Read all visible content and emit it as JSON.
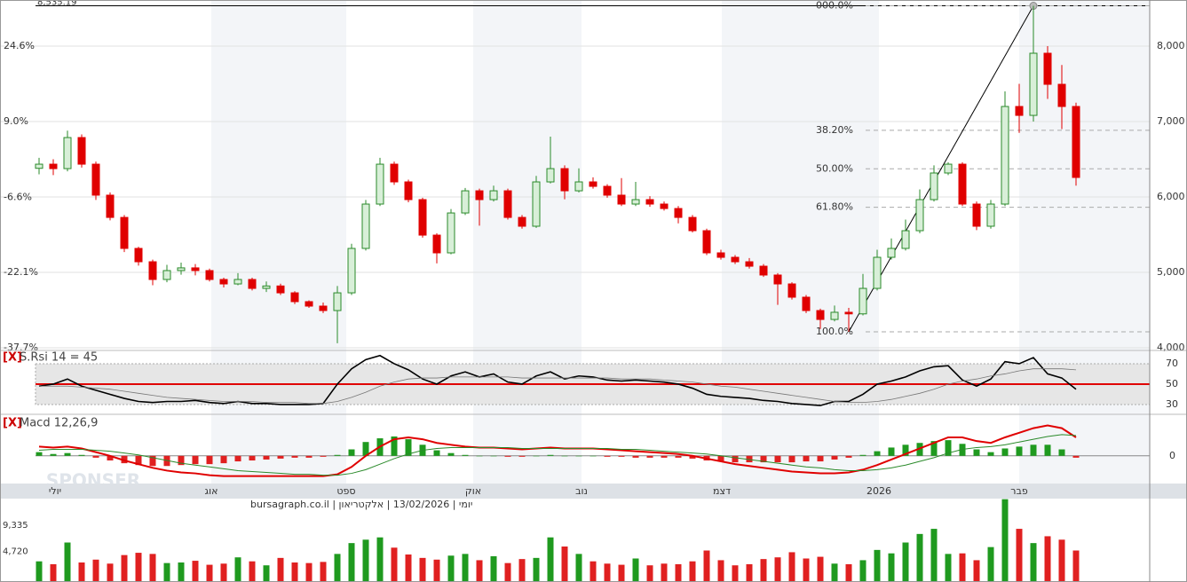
{
  "chart_data": [
    {
      "type": "candlestick",
      "high_label": {
        "value": 8535.19,
        "label": "8,535.19"
      },
      "watermark": "SPONSER",
      "candles": [
        [
          6380,
          6520,
          6300,
          6435
        ],
        [
          6435,
          6500,
          6290,
          6376
        ],
        [
          6376,
          6880,
          6340,
          6788
        ],
        [
          6788,
          6830,
          6390,
          6435
        ],
        [
          6435,
          6470,
          5960,
          6024
        ],
        [
          6024,
          6060,
          5690,
          5729
        ],
        [
          5729,
          5760,
          5270,
          5318
        ],
        [
          5318,
          5340,
          5090,
          5141
        ],
        [
          5141,
          5170,
          4830,
          4906
        ],
        [
          4906,
          5100,
          4870,
          5024
        ],
        [
          5024,
          5130,
          4970,
          5060
        ],
        [
          5060,
          5110,
          4960,
          5024
        ],
        [
          5024,
          5050,
          4880,
          4906
        ],
        [
          4906,
          4930,
          4800,
          4847
        ],
        [
          4847,
          4990,
          4830,
          4906
        ],
        [
          4906,
          4930,
          4760,
          4788
        ],
        [
          4788,
          4880,
          4740,
          4820
        ],
        [
          4820,
          4850,
          4700,
          4729
        ],
        [
          4729,
          4750,
          4580,
          4612
        ],
        [
          4612,
          4630,
          4530,
          4553
        ],
        [
          4553,
          4600,
          4460,
          4494
        ],
        [
          4494,
          4820,
          4060,
          4729
        ],
        [
          4729,
          5380,
          4700,
          5318
        ],
        [
          5318,
          5960,
          5290,
          5906
        ],
        [
          5906,
          6520,
          5880,
          6435
        ],
        [
          6435,
          6470,
          6160,
          6200
        ],
        [
          6200,
          6230,
          5930,
          5965
        ],
        [
          5965,
          5990,
          5460,
          5494
        ],
        [
          5494,
          5520,
          5120,
          5259
        ],
        [
          5259,
          5840,
          5240,
          5788
        ],
        [
          5788,
          6120,
          5760,
          6082
        ],
        [
          6082,
          6110,
          5620,
          5965
        ],
        [
          5965,
          6150,
          5940,
          6082
        ],
        [
          6082,
          6110,
          5700,
          5729
        ],
        [
          5729,
          5760,
          5580,
          5612
        ],
        [
          5612,
          6280,
          5590,
          6200
        ],
        [
          6200,
          6800,
          6180,
          6376
        ],
        [
          6376,
          6420,
          5970,
          6082
        ],
        [
          6082,
          6380,
          6060,
          6200
        ],
        [
          6200,
          6260,
          6110,
          6141
        ],
        [
          6141,
          6170,
          5990,
          6024
        ],
        [
          6024,
          6250,
          5880,
          5906
        ],
        [
          5906,
          6200,
          5880,
          5965
        ],
        [
          5965,
          6010,
          5870,
          5906
        ],
        [
          5906,
          5940,
          5820,
          5847
        ],
        [
          5847,
          5880,
          5650,
          5729
        ],
        [
          5729,
          5760,
          5530,
          5553
        ],
        [
          5553,
          5580,
          5230,
          5259
        ],
        [
          5259,
          5300,
          5170,
          5200
        ],
        [
          5200,
          5230,
          5110,
          5141
        ],
        [
          5141,
          5190,
          5050,
          5082
        ],
        [
          5082,
          5110,
          4940,
          4965
        ],
        [
          4965,
          4990,
          4570,
          4847
        ],
        [
          4847,
          4870,
          4640,
          4671
        ],
        [
          4671,
          4700,
          4460,
          4494
        ],
        [
          4494,
          4520,
          4250,
          4376
        ],
        [
          4376,
          4560,
          4350,
          4471
        ],
        [
          4471,
          4530,
          4212,
          4450
        ],
        [
          4450,
          4980,
          4430,
          4788
        ],
        [
          4788,
          5300,
          4760,
          5200
        ],
        [
          5200,
          5450,
          5170,
          5318
        ],
        [
          5318,
          5700,
          5290,
          5553
        ],
        [
          5553,
          6100,
          5520,
          5965
        ],
        [
          5965,
          6420,
          5940,
          6318
        ],
        [
          6318,
          6460,
          6290,
          6435
        ],
        [
          6435,
          6460,
          5880,
          5906
        ],
        [
          5906,
          5940,
          5560,
          5612
        ],
        [
          5612,
          5960,
          5580,
          5906
        ],
        [
          5906,
          7400,
          5880,
          7200
        ],
        [
          7200,
          7500,
          6850,
          7082
        ],
        [
          7082,
          8535.19,
          7000,
          7906
        ],
        [
          7906,
          8000,
          7300,
          7494
        ],
        [
          7494,
          7750,
          6900,
          7200
        ],
        [
          7200,
          7250,
          6150,
          6259
        ]
      ],
      "up_color": "#2a8a2a",
      "down_color": "#e00000",
      "ylim": [
        3965,
        8612
      ],
      "yticks": [
        {
          "value": 4000,
          "label": "4,000"
        },
        {
          "value": 5000,
          "label": "5,000"
        },
        {
          "value": 6000,
          "label": "6,000"
        },
        {
          "value": 7000,
          "label": "7,000"
        },
        {
          "value": 8000,
          "label": "8,000"
        }
      ],
      "y2lim": [
        -38.25,
        34.13
      ],
      "y2ticks": [
        {
          "value": -37.7,
          "label": "-37.7%"
        },
        {
          "value": -22.1,
          "label": "-22.1%"
        },
        {
          "value": -6.6,
          "label": "-6.6%"
        },
        {
          "value": 9.0,
          "label": "9.0%"
        },
        {
          "value": 24.6,
          "label": "24.6%"
        }
      ],
      "fib": {
        "from": 4212,
        "to": 8535.19,
        "levels": [
          {
            "value": 0,
            "label": "000.0%"
          },
          {
            "value": 38.2,
            "label": "38.20%"
          },
          {
            "value": 50,
            "label": "50.00%"
          },
          {
            "value": 61.8,
            "label": "61.80%"
          },
          {
            "value": 100,
            "label": "100.0%"
          }
        ]
      },
      "months": [
        "יולי",
        "אוג",
        "ספט",
        "אוק",
        "נוב",
        "דצמ",
        "2026",
        "פבר"
      ],
      "grid": true
    },
    {
      "type": "line",
      "close_label": "[X]",
      "title": "S.Rsi 14 = 45",
      "ylim": [
        20.4,
        83
      ],
      "yticks": [
        30,
        50,
        70
      ],
      "level_color": "#e00000",
      "series": [
        {
          "color": "#000000",
          "values": [
            48,
            50,
            55,
            48,
            44,
            40,
            36,
            33,
            32,
            33,
            33,
            34,
            32,
            31,
            33,
            31,
            31,
            30,
            30,
            30,
            31,
            50,
            65,
            74,
            78,
            70,
            64,
            55,
            50,
            58,
            62,
            57,
            60,
            52,
            50,
            58,
            62,
            55,
            58,
            57,
            54,
            53,
            54,
            53,
            52,
            50,
            46,
            40,
            38,
            37,
            36,
            34,
            33,
            31,
            30,
            29,
            33,
            33,
            40,
            50,
            53,
            57,
            63,
            67,
            68,
            54,
            48,
            55,
            72,
            70,
            76,
            60,
            56,
            45
          ]
        },
        {
          "color": "#777777",
          "values": [
            48,
            48,
            48,
            47,
            46,
            45,
            43,
            41,
            39,
            37,
            36,
            35,
            34,
            33,
            33,
            33,
            32,
            32,
            32,
            31,
            31,
            33,
            37,
            42,
            48,
            52,
            55,
            56,
            56,
            57,
            57,
            57,
            57,
            57,
            56,
            56,
            56,
            56,
            56,
            56,
            56,
            55,
            55,
            55,
            54,
            53,
            52,
            50,
            48,
            47,
            45,
            43,
            41,
            39,
            37,
            35,
            33,
            32,
            32,
            33,
            35,
            38,
            41,
            45,
            50,
            53,
            55,
            58,
            60,
            63,
            65,
            65,
            65,
            64
          ]
        }
      ]
    },
    {
      "type": "macd",
      "close_label": "[X]",
      "title": "Macd 12,26,9",
      "ylim": [
        -30,
        45
      ],
      "yticks": [
        0
      ],
      "series": [
        {
          "color": "#e00000",
          "values": [
            10,
            9,
            10,
            8,
            4,
            0,
            -5,
            -9,
            -13,
            -16,
            -18,
            -19,
            -21,
            -22,
            -22,
            -22,
            -22,
            -22,
            -22,
            -22,
            -22,
            -20,
            -12,
            0,
            10,
            18,
            20,
            18,
            14,
            12,
            10,
            9,
            9,
            8,
            7,
            8,
            9,
            8,
            8,
            8,
            7,
            6,
            5,
            4,
            3,
            2,
            0,
            -3,
            -6,
            -9,
            -11,
            -13,
            -15,
            -17,
            -18,
            -19,
            -19,
            -18,
            -15,
            -10,
            -4,
            2,
            8,
            14,
            20,
            20,
            16,
            14,
            20,
            25,
            30,
            33,
            30,
            20
          ]
        },
        {
          "color": "#2a8a2a",
          "values": [
            6,
            7,
            7,
            7,
            6,
            5,
            3,
            1,
            -2,
            -5,
            -8,
            -10,
            -12,
            -14,
            -16,
            -17,
            -18,
            -19,
            -20,
            -20,
            -21,
            -21,
            -19,
            -15,
            -9,
            -3,
            2,
            6,
            8,
            9,
            9,
            9,
            9,
            9,
            8,
            8,
            8,
            8,
            8,
            8,
            8,
            7,
            7,
            6,
            5,
            4,
            3,
            2,
            0,
            -2,
            -4,
            -6,
            -8,
            -10,
            -12,
            -13,
            -15,
            -16,
            -16,
            -15,
            -13,
            -10,
            -6,
            -2,
            3,
            7,
            9,
            10,
            12,
            15,
            18,
            21,
            23,
            22
          ]
        }
      ],
      "histogram": [
        4,
        2,
        3,
        1,
        -2,
        -5,
        -8,
        -10,
        -11,
        -11,
        -10,
        -9,
        -9,
        -8,
        -6,
        -5,
        -4,
        -3,
        -2,
        -2,
        -1,
        1,
        7,
        15,
        19,
        21,
        18,
        12,
        6,
        3,
        1,
        0,
        0,
        -1,
        -1,
        0,
        1,
        0,
        0,
        0,
        -1,
        -1,
        -2,
        -2,
        -2,
        -2,
        -3,
        -5,
        -6,
        -7,
        -7,
        -7,
        -7,
        -7,
        -6,
        -6,
        -4,
        -2,
        1,
        5,
        9,
        12,
        14,
        16,
        17,
        13,
        7,
        4,
        8,
        10,
        12,
        12,
        7,
        -2
      ]
    },
    {
      "type": "bar",
      "title": "יומי | 13/02/2026 | אלקטריאון | bursagraph.co.il",
      "ylim": [
        0,
        14000
      ],
      "yticks": [
        {
          "value": 4720,
          "label": "4,720"
        },
        {
          "value": 9335,
          "label": "9,335"
        }
      ],
      "values": [
        3000,
        2500,
        6300,
        2800,
        3300,
        2600,
        4100,
        4500,
        4300,
        2700,
        2800,
        3100,
        2400,
        2600,
        3700,
        3000,
        2300,
        3600,
        2800,
        2700,
        2900,
        4300,
        6200,
        6800,
        7200,
        5400,
        4200,
        3600,
        3300,
        4000,
        4300,
        3200,
        3900,
        2700,
        3400,
        3600,
        7200,
        5600,
        4300,
        3000,
        2600,
        2400,
        3500,
        2300,
        2600,
        2500,
        3000,
        4900,
        3200,
        2300,
        2500,
        3400,
        3700,
        4600,
        3500,
        3800,
        2600,
        2500,
        3200,
        5000,
        4400,
        6300,
        7800,
        8700,
        4300,
        4400,
        3200,
        5500,
        13900,
        8700,
        6200,
        7400,
        6800,
        4900
      ]
    }
  ]
}
